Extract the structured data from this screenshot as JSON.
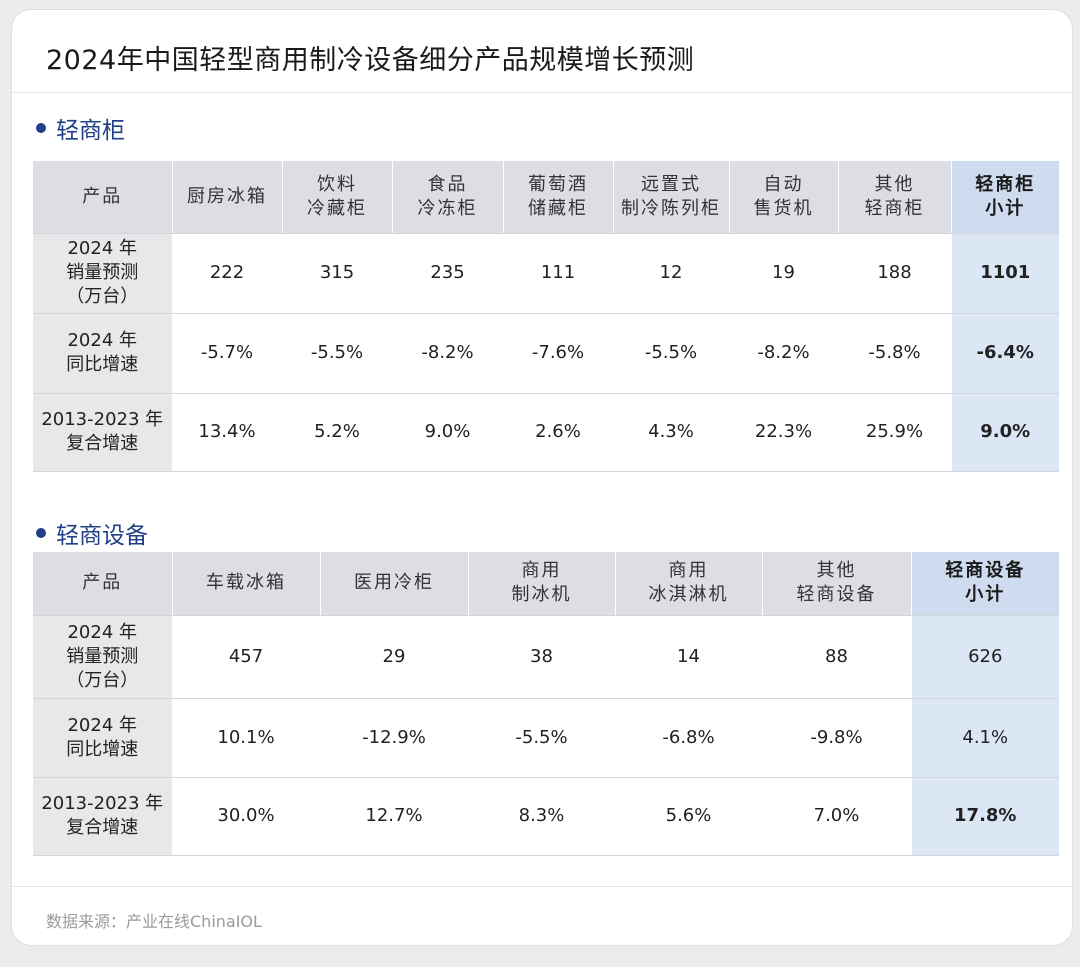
{
  "title": "2024年中国轻型商用制冷设备细分产品规模增长预测",
  "section1": {
    "title": "轻商柜",
    "header": [
      [
        "产品"
      ],
      [
        "厨房冰箱"
      ],
      [
        "饮料",
        "冷藏柜"
      ],
      [
        "食品",
        "冷冻柜"
      ],
      [
        "葡萄酒",
        "储藏柜"
      ],
      [
        "远置式",
        "制冷陈列柜"
      ],
      [
        "自动",
        "售货机"
      ],
      [
        "其他",
        "轻商柜"
      ],
      [
        "轻商柜",
        "小计"
      ]
    ],
    "rows": [
      {
        "label": [
          "2024 年",
          "销量预测",
          "（万台）"
        ],
        "values": [
          "222",
          "315",
          "235",
          "111",
          "12",
          "19",
          "188"
        ],
        "subtotal": "1101"
      },
      {
        "label": [
          "2024 年",
          "同比增速"
        ],
        "values": [
          "-5.7%",
          "-5.5%",
          "-8.2%",
          "-7.6%",
          "-5.5%",
          "-8.2%",
          "-5.8%"
        ],
        "subtotal": "-6.4%"
      },
      {
        "label": [
          "2013-2023 年",
          "复合增速"
        ],
        "values": [
          "13.4%",
          "5.2%",
          "9.0%",
          "2.6%",
          "4.3%",
          "22.3%",
          "25.9%"
        ],
        "subtotal": "9.0%"
      }
    ]
  },
  "section2": {
    "title": "轻商设备",
    "header": [
      [
        "产品"
      ],
      [
        "车载冰箱"
      ],
      [
        "医用冷柜"
      ],
      [
        "商用",
        "制冰机"
      ],
      [
        "商用",
        "冰淇淋机"
      ],
      [
        "其他",
        "轻商设备"
      ],
      [
        "轻商设备",
        "小计"
      ]
    ],
    "rows": [
      {
        "label": [
          "2024 年",
          "销量预测",
          "（万台）"
        ],
        "values": [
          "457",
          "29",
          "38",
          "14",
          "88"
        ],
        "subtotal": "626"
      },
      {
        "label": [
          "2024 年",
          "同比增速"
        ],
        "values": [
          "10.1%",
          "-12.9%",
          "-5.5%",
          "-6.8%",
          "-9.8%"
        ],
        "subtotal": "4.1%"
      },
      {
        "label": [
          "2013-2023 年",
          "复合增速"
        ],
        "values": [
          "30.0%",
          "12.7%",
          "8.3%",
          "5.6%",
          "7.0%"
        ],
        "subtotal": "17.8%"
      }
    ]
  },
  "footer": "数据来源：产业在线ChinaIOL"
}
